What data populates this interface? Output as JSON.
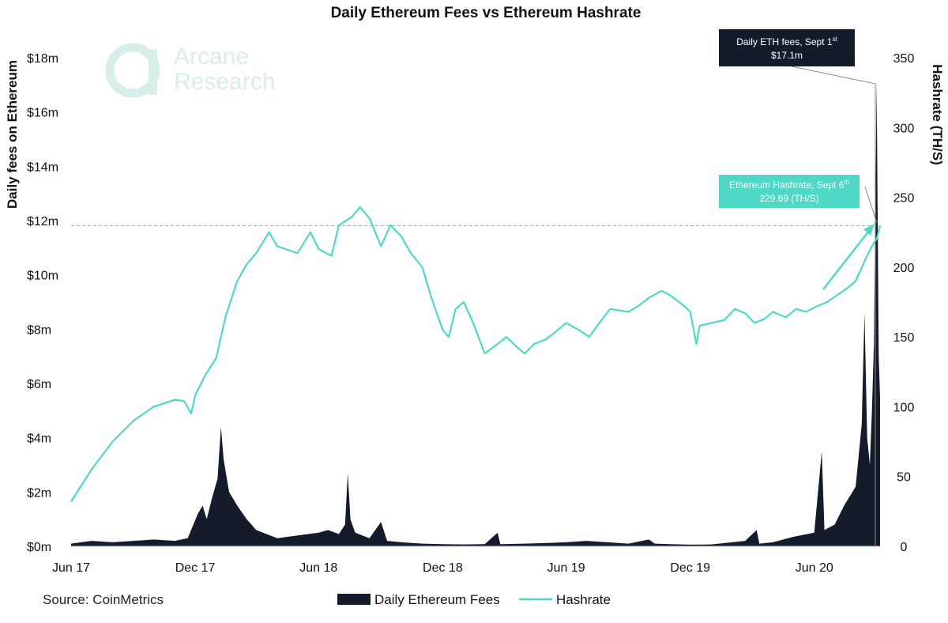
{
  "chart_data": {
    "type": "area+line",
    "title": "Daily Ethereum Fees vs Ethereum Hashrate",
    "x_ticks": [
      "Jun 17",
      "Dec 17",
      "Jun 18",
      "Dec 18",
      "Jun 19",
      "Dec 19",
      "Jun 20"
    ],
    "x_range": [
      "2017-06-01",
      "2020-09-06"
    ],
    "left_axis": {
      "label": "Daily fees on Ethereum",
      "ticks": [
        "$0m",
        "$2m",
        "$4m",
        "$6m",
        "$8m",
        "$10m",
        "$12m",
        "$14m",
        "$16m",
        "$18m"
      ],
      "range": [
        0,
        18
      ]
    },
    "right_axis": {
      "label": "Hashrate (TH/S)",
      "ticks": [
        "0",
        "50",
        "100",
        "150",
        "200",
        "250",
        "300",
        "350"
      ],
      "range": [
        0,
        350
      ]
    },
    "series": [
      {
        "name": "Daily Ethereum Fees",
        "axis": "left",
        "color": "#141c2b",
        "points": [
          [
            "2017-06-01",
            0.1
          ],
          [
            "2017-07-01",
            0.2
          ],
          [
            "2017-08-01",
            0.15
          ],
          [
            "2017-09-01",
            0.2
          ],
          [
            "2017-10-01",
            0.25
          ],
          [
            "2017-11-01",
            0.2
          ],
          [
            "2017-11-20",
            0.3
          ],
          [
            "2017-12-05",
            1.2
          ],
          [
            "2017-12-12",
            1.5
          ],
          [
            "2017-12-18",
            1.0
          ],
          [
            "2017-12-25",
            1.7
          ],
          [
            "2018-01-03",
            2.5
          ],
          [
            "2018-01-08",
            4.4
          ],
          [
            "2018-01-12",
            3.2
          ],
          [
            "2018-01-20",
            2.0
          ],
          [
            "2018-02-01",
            1.5
          ],
          [
            "2018-02-15",
            1.0
          ],
          [
            "2018-03-01",
            0.6
          ],
          [
            "2018-04-01",
            0.3
          ],
          [
            "2018-05-01",
            0.4
          ],
          [
            "2018-06-01",
            0.5
          ],
          [
            "2018-06-15",
            0.6
          ],
          [
            "2018-07-01",
            0.45
          ],
          [
            "2018-07-10",
            0.8
          ],
          [
            "2018-07-14",
            2.7
          ],
          [
            "2018-07-18",
            1.0
          ],
          [
            "2018-07-25",
            0.5
          ],
          [
            "2018-08-15",
            0.3
          ],
          [
            "2018-09-01",
            0.9
          ],
          [
            "2018-09-10",
            0.2
          ],
          [
            "2018-10-01",
            0.15
          ],
          [
            "2018-11-01",
            0.1
          ],
          [
            "2018-12-01",
            0.08
          ],
          [
            "2019-01-01",
            0.07
          ],
          [
            "2019-02-01",
            0.08
          ],
          [
            "2019-02-20",
            0.5
          ],
          [
            "2019-02-24",
            0.08
          ],
          [
            "2019-04-01",
            0.1
          ],
          [
            "2019-05-01",
            0.12
          ],
          [
            "2019-06-01",
            0.15
          ],
          [
            "2019-07-01",
            0.2
          ],
          [
            "2019-08-01",
            0.15
          ],
          [
            "2019-09-01",
            0.1
          ],
          [
            "2019-10-01",
            0.25
          ],
          [
            "2019-10-10",
            0.1
          ],
          [
            "2019-11-01",
            0.08
          ],
          [
            "2019-12-01",
            0.06
          ],
          [
            "2020-01-01",
            0.07
          ],
          [
            "2020-02-01",
            0.15
          ],
          [
            "2020-02-20",
            0.2
          ],
          [
            "2020-03-08",
            0.6
          ],
          [
            "2020-03-12",
            0.1
          ],
          [
            "2020-04-01",
            0.15
          ],
          [
            "2020-05-01",
            0.35
          ],
          [
            "2020-06-01",
            0.5
          ],
          [
            "2020-06-12",
            3.5
          ],
          [
            "2020-06-16",
            0.6
          ],
          [
            "2020-07-01",
            0.8
          ],
          [
            "2020-07-15",
            1.5
          ],
          [
            "2020-08-01",
            2.2
          ],
          [
            "2020-08-10",
            4.5
          ],
          [
            "2020-08-14",
            8.6
          ],
          [
            "2020-08-18",
            4.0
          ],
          [
            "2020-08-22",
            3.0
          ],
          [
            "2020-08-25",
            5.0
          ],
          [
            "2020-08-28",
            7.5
          ],
          [
            "2020-09-01",
            17.1
          ],
          [
            "2020-09-04",
            7.0
          ],
          [
            "2020-09-06",
            5.5
          ]
        ]
      },
      {
        "name": "Hashrate",
        "axis": "right",
        "color": "#4fd8c6",
        "points": [
          [
            "2017-06-01",
            32
          ],
          [
            "2017-07-01",
            55
          ],
          [
            "2017-08-01",
            75
          ],
          [
            "2017-09-01",
            90
          ],
          [
            "2017-10-01",
            100
          ],
          [
            "2017-11-01",
            105
          ],
          [
            "2017-11-15",
            104
          ],
          [
            "2017-11-25",
            95
          ],
          [
            "2017-12-01",
            108
          ],
          [
            "2017-12-15",
            122
          ],
          [
            "2018-01-01",
            135
          ],
          [
            "2018-01-15",
            165
          ],
          [
            "2018-02-01",
            190
          ],
          [
            "2018-02-15",
            202
          ],
          [
            "2018-03-01",
            210
          ],
          [
            "2018-03-20",
            225
          ],
          [
            "2018-04-01",
            215
          ],
          [
            "2018-05-01",
            210
          ],
          [
            "2018-05-20",
            225
          ],
          [
            "2018-06-01",
            213
          ],
          [
            "2018-06-20",
            208
          ],
          [
            "2018-07-01",
            230
          ],
          [
            "2018-07-20",
            236
          ],
          [
            "2018-08-01",
            243
          ],
          [
            "2018-08-15",
            235
          ],
          [
            "2018-09-01",
            215
          ],
          [
            "2018-09-15",
            230
          ],
          [
            "2018-10-01",
            222
          ],
          [
            "2018-10-15",
            210
          ],
          [
            "2018-11-01",
            200
          ],
          [
            "2018-11-10",
            185
          ],
          [
            "2018-11-20",
            170
          ],
          [
            "2018-12-01",
            155
          ],
          [
            "2018-12-10",
            150
          ],
          [
            "2018-12-20",
            170
          ],
          [
            "2019-01-01",
            175
          ],
          [
            "2019-01-15",
            160
          ],
          [
            "2019-02-01",
            138
          ],
          [
            "2019-02-20",
            145
          ],
          [
            "2019-03-05",
            150
          ],
          [
            "2019-03-20",
            143
          ],
          [
            "2019-04-01",
            138
          ],
          [
            "2019-04-15",
            145
          ],
          [
            "2019-05-01",
            148
          ],
          [
            "2019-05-15",
            153
          ],
          [
            "2019-06-01",
            160
          ],
          [
            "2019-06-20",
            155
          ],
          [
            "2019-07-05",
            150
          ],
          [
            "2019-07-20",
            160
          ],
          [
            "2019-08-05",
            170
          ],
          [
            "2019-09-01",
            168
          ],
          [
            "2019-09-15",
            172
          ],
          [
            "2019-10-01",
            178
          ],
          [
            "2019-10-20",
            183
          ],
          [
            "2019-11-01",
            180
          ],
          [
            "2019-11-20",
            173
          ],
          [
            "2019-12-01",
            168
          ],
          [
            "2019-12-10",
            145
          ],
          [
            "2019-12-15",
            158
          ],
          [
            "2020-01-01",
            160
          ],
          [
            "2020-01-20",
            162
          ],
          [
            "2020-02-05",
            170
          ],
          [
            "2020-02-20",
            167
          ],
          [
            "2020-03-05",
            160
          ],
          [
            "2020-03-20",
            163
          ],
          [
            "2020-04-01",
            168
          ],
          [
            "2020-04-20",
            164
          ],
          [
            "2020-05-05",
            170
          ],
          [
            "2020-05-20",
            168
          ],
          [
            "2020-06-05",
            172
          ],
          [
            "2020-06-20",
            175
          ],
          [
            "2020-07-05",
            180
          ],
          [
            "2020-07-20",
            185
          ],
          [
            "2020-08-01",
            190
          ],
          [
            "2020-08-15",
            205
          ],
          [
            "2020-08-25",
            215
          ],
          [
            "2020-09-01",
            220
          ],
          [
            "2020-09-06",
            229.69
          ]
        ]
      }
    ],
    "reference_line": {
      "axis": "right",
      "value": 229.69,
      "style": "dashed",
      "color": "#4fd8c6"
    },
    "annotations": [
      {
        "line1": "Daily ETH fees, Sept 1",
        "sup": "st",
        "line2": "$17.1m",
        "color": "#141c2b"
      },
      {
        "line1": "Ethereum Hashrate, Sept 6",
        "sup": "th",
        "line2": "229.69 (TH/S)",
        "color": "#4fd8c6"
      }
    ],
    "legend": {
      "position": "bottom-center",
      "items": [
        {
          "label": "Daily Ethereum Fees",
          "style": "area",
          "color": "#141c2b"
        },
        {
          "label": "Hashrate",
          "style": "line",
          "color": "#4fd8c6"
        }
      ]
    },
    "grid": false
  },
  "brand": {
    "line1": "Arcane",
    "line2": "Research",
    "color": "#d7eeea"
  },
  "source": "Source: CoinMetrics"
}
